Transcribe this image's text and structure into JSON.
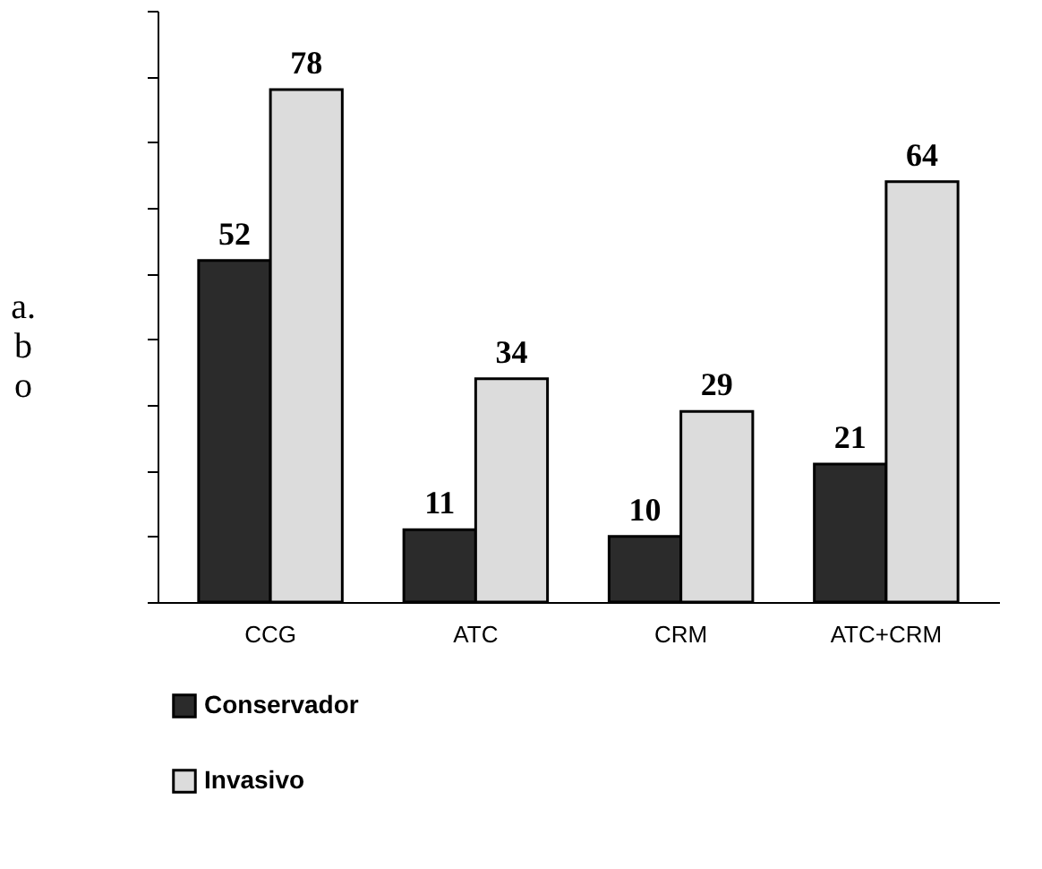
{
  "chart_data": {
    "type": "bar",
    "ylabel": "a. b o",
    "categories": [
      "CCG",
      "ATC",
      "CRM",
      "ATC+CRM"
    ],
    "series": [
      {
        "name": "Conservador",
        "color": "#2b2b2b",
        "values": [
          52,
          11,
          10,
          21
        ]
      },
      {
        "name": "Invasivo",
        "color": "#dcdcdc",
        "values": [
          78,
          34,
          29,
          64
        ]
      }
    ],
    "ylim": [
      0,
      90
    ],
    "yticks": [
      {
        "value": 0,
        "label": null
      },
      {
        "value": 10,
        "label": null
      },
      {
        "value": 20,
        "label": null
      },
      {
        "value": 30,
        "label": null
      },
      {
        "value": 40,
        "label": null
      },
      {
        "value": 50,
        "label": null
      },
      {
        "value": 60,
        "label": null
      },
      {
        "value": 70,
        "label": null
      },
      {
        "value": 80,
        "label": null
      },
      {
        "value": 90,
        "label": null
      }
    ],
    "tick_labels": "x",
    "grid": false,
    "legend": "bottom",
    "data_labels": true
  }
}
